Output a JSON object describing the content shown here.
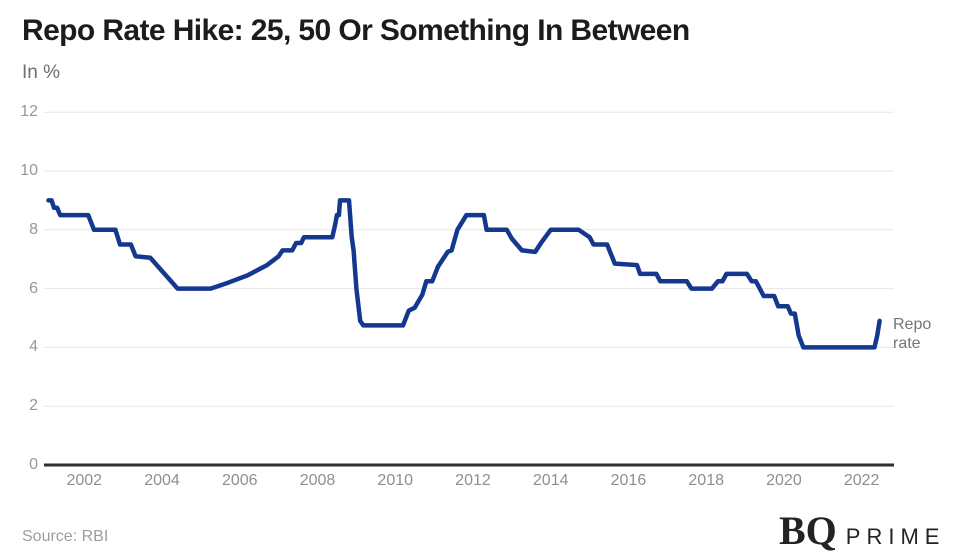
{
  "header": {
    "title": "Repo Rate Hike: 25, 50 Or Something In Between",
    "subtitle": "In %"
  },
  "footer": {
    "source": "Source: RBI",
    "logo_bq": "BQ",
    "logo_prime": "PRIME"
  },
  "chart_data": {
    "type": "line",
    "title": "Repo Rate Hike: 25, 50 Or Something In Between",
    "units_label": "In %",
    "series_label": "Repo rate",
    "line_color": "#15388F",
    "grid": true,
    "x_ticks": [
      2002,
      2004,
      2006,
      2008,
      2010,
      2012,
      2014,
      2016,
      2018,
      2020,
      2022
    ],
    "y_ticks": [
      0,
      2,
      4,
      6,
      8,
      10,
      12
    ],
    "x_range": [
      2001,
      2023
    ],
    "y_range": [
      0,
      12
    ],
    "series": [
      {
        "name": "Repo rate",
        "points": [
          [
            2001.08,
            9.0
          ],
          [
            2001.16,
            9.0
          ],
          [
            2001.22,
            8.75
          ],
          [
            2001.3,
            8.75
          ],
          [
            2001.38,
            8.5
          ],
          [
            2002.1,
            8.5
          ],
          [
            2002.25,
            8.0
          ],
          [
            2002.8,
            8.0
          ],
          [
            2002.92,
            7.5
          ],
          [
            2003.2,
            7.5
          ],
          [
            2003.32,
            7.1
          ],
          [
            2003.7,
            7.05
          ],
          [
            2004.4,
            6.0
          ],
          [
            2005.25,
            6.0
          ],
          [
            2005.7,
            6.2
          ],
          [
            2006.2,
            6.45
          ],
          [
            2006.7,
            6.8
          ],
          [
            2007.0,
            7.1
          ],
          [
            2007.1,
            7.3
          ],
          [
            2007.35,
            7.3
          ],
          [
            2007.45,
            7.55
          ],
          [
            2007.58,
            7.55
          ],
          [
            2007.65,
            7.75
          ],
          [
            2008.38,
            7.75
          ],
          [
            2008.45,
            8.15
          ],
          [
            2008.5,
            8.5
          ],
          [
            2008.55,
            8.5
          ],
          [
            2008.58,
            9.0
          ],
          [
            2008.81,
            9.0
          ],
          [
            2008.88,
            7.75
          ],
          [
            2008.93,
            7.3
          ],
          [
            2009.0,
            6.0
          ],
          [
            2009.1,
            4.9
          ],
          [
            2009.18,
            4.75
          ],
          [
            2010.2,
            4.75
          ],
          [
            2010.35,
            5.25
          ],
          [
            2010.5,
            5.35
          ],
          [
            2010.7,
            5.8
          ],
          [
            2010.8,
            6.25
          ],
          [
            2010.95,
            6.25
          ],
          [
            2011.1,
            6.75
          ],
          [
            2011.35,
            7.25
          ],
          [
            2011.45,
            7.3
          ],
          [
            2011.6,
            8.0
          ],
          [
            2011.83,
            8.5
          ],
          [
            2012.28,
            8.5
          ],
          [
            2012.35,
            8.0
          ],
          [
            2012.87,
            8.0
          ],
          [
            2013.0,
            7.7
          ],
          [
            2013.26,
            7.3
          ],
          [
            2013.6,
            7.25
          ],
          [
            2013.75,
            7.55
          ],
          [
            2014.0,
            8.0
          ],
          [
            2014.72,
            8.0
          ],
          [
            2015.0,
            7.75
          ],
          [
            2015.1,
            7.5
          ],
          [
            2015.45,
            7.5
          ],
          [
            2015.65,
            6.85
          ],
          [
            2016.22,
            6.8
          ],
          [
            2016.3,
            6.5
          ],
          [
            2016.72,
            6.5
          ],
          [
            2016.82,
            6.25
          ],
          [
            2017.5,
            6.25
          ],
          [
            2017.62,
            6.0
          ],
          [
            2018.15,
            6.0
          ],
          [
            2018.3,
            6.25
          ],
          [
            2018.42,
            6.25
          ],
          [
            2018.52,
            6.5
          ],
          [
            2019.05,
            6.5
          ],
          [
            2019.17,
            6.25
          ],
          [
            2019.28,
            6.25
          ],
          [
            2019.38,
            6.0
          ],
          [
            2019.48,
            5.75
          ],
          [
            2019.75,
            5.75
          ],
          [
            2019.85,
            5.4
          ],
          [
            2020.1,
            5.4
          ],
          [
            2020.18,
            5.15
          ],
          [
            2020.28,
            5.15
          ],
          [
            2020.38,
            4.4
          ],
          [
            2020.5,
            4.0
          ],
          [
            2022.33,
            4.0
          ],
          [
            2022.4,
            4.4
          ],
          [
            2022.46,
            4.9
          ]
        ]
      }
    ]
  }
}
